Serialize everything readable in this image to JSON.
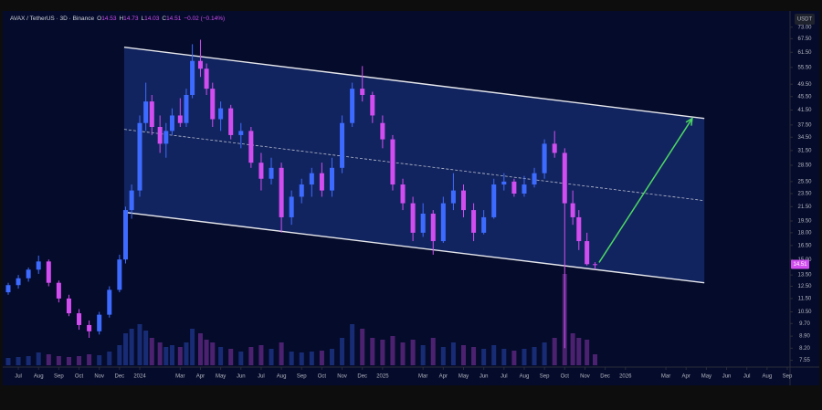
{
  "chart_data": {
    "type": "candlestick",
    "symbol": "AVAX / TetherUS · 3D · Binance",
    "ohlc_labels": [
      "O",
      "H",
      "L",
      "C"
    ],
    "change": "−0.02 (−0.14%)",
    "currency": "USDT",
    "log_scale": true,
    "up_color": "#3d6bff",
    "down_color": "#d24df0",
    "x": [
      -0.5,
      0,
      0.5,
      1,
      1.5,
      2,
      2.5,
      3,
      3.5,
      4,
      4.5,
      5,
      5.3,
      5.6,
      6,
      6.3,
      6.6,
      7,
      7.3,
      7.6,
      8,
      8.3,
      8.6,
      9,
      9.3,
      9.6,
      10,
      10.5,
      11,
      11.5,
      12,
      12.5,
      13,
      13.5,
      14,
      14.5,
      15,
      15.5,
      16,
      16.5,
      17,
      17.5,
      18,
      18.5,
      19,
      19.5,
      20,
      20.5,
      21,
      21.5,
      22,
      22.5,
      23,
      23.5,
      24,
      24.5,
      25,
      25.5,
      26,
      26.5,
      27,
      27.4,
      27.7,
      28.1,
      28.5
    ],
    "open": [
      12,
      12.6,
      13.2,
      14,
      14.8,
      12.8,
      11.5,
      10.4,
      9.6,
      9.2,
      10.3,
      12.2,
      15,
      21,
      24,
      38,
      44,
      37,
      33,
      36,
      40,
      38,
      46,
      58,
      55,
      48,
      39,
      42,
      35,
      36,
      29,
      26,
      28,
      20,
      23,
      25,
      27,
      24,
      28,
      38,
      48,
      46,
      38,
      34,
      25,
      22,
      18,
      20.5,
      17,
      22,
      24,
      21,
      18,
      20,
      25,
      25.5,
      23.5,
      25,
      27,
      33,
      31,
      22,
      20,
      17,
      14.53
    ],
    "high": [
      12.8,
      13.5,
      14.2,
      15.4,
      15,
      13,
      11.8,
      10.7,
      9.9,
      10.5,
      12.5,
      15.5,
      21.5,
      25,
      40,
      50,
      46,
      40,
      38,
      42,
      45,
      48,
      65,
      67,
      57,
      50,
      44,
      43,
      38,
      37,
      31,
      30,
      29,
      24,
      26,
      28,
      29,
      30,
      40,
      50,
      56,
      47,
      40,
      35,
      26,
      23,
      22,
      21,
      23,
      27,
      25,
      22,
      21,
      26,
      27,
      26,
      26.5,
      28,
      34,
      36,
      32,
      24,
      21,
      18,
      14.73
    ],
    "low": [
      11.8,
      12.3,
      12.9,
      13.6,
      12.5,
      11.2,
      10.2,
      9.3,
      8.8,
      9,
      10.1,
      12,
      14.6,
      19.8,
      23,
      36,
      35,
      31,
      30,
      35,
      37,
      37,
      45,
      52,
      46,
      37,
      36,
      34,
      32,
      28,
      24,
      25,
      18,
      19,
      22,
      23,
      23,
      23,
      27,
      37,
      44,
      38,
      32,
      24,
      21,
      17,
      17.5,
      15.5,
      16.8,
      21,
      20,
      17,
      17.8,
      19.8,
      24,
      23,
      23,
      24.5,
      26,
      30,
      8.2,
      19,
      16,
      14.4,
      14.03
    ],
    "close": [
      12.6,
      13.2,
      14,
      14.8,
      12.8,
      11.5,
      10.4,
      9.6,
      9.2,
      10.3,
      12.2,
      15,
      21,
      24,
      38,
      44,
      37,
      33,
      36,
      40,
      38,
      46,
      58,
      55,
      48,
      39,
      42,
      35,
      36,
      29,
      26,
      28,
      20,
      23,
      25,
      27,
      24,
      28,
      38,
      48,
      46,
      40,
      34,
      25,
      22,
      18,
      20.5,
      17,
      22,
      24,
      21,
      18,
      20,
      25,
      25.5,
      23.5,
      25,
      27,
      33,
      31,
      22,
      20,
      17,
      14.53,
      14.51
    ],
    "volume": [
      8,
      9,
      10,
      14,
      12,
      10,
      9,
      10,
      12,
      11,
      15,
      22,
      35,
      40,
      45,
      38,
      30,
      25,
      20,
      22,
      20,
      25,
      40,
      35,
      28,
      25,
      20,
      18,
      15,
      20,
      22,
      18,
      25,
      15,
      14,
      15,
      16,
      18,
      30,
      45,
      40,
      30,
      28,
      32,
      25,
      28,
      22,
      30,
      20,
      25,
      22,
      20,
      18,
      22,
      18,
      16,
      18,
      20,
      25,
      30,
      100,
      35,
      30,
      28,
      12
    ],
    "vlim": [
      0,
      100
    ],
    "xlim": [
      -0.68,
      38
    ],
    "ylim": [
      7.3,
      80
    ],
    "xticks": [
      {
        "value": 0,
        "label": "Jul"
      },
      {
        "value": 1,
        "label": "Aug"
      },
      {
        "value": 2,
        "label": "Sep"
      },
      {
        "value": 3,
        "label": "Oct"
      },
      {
        "value": 4,
        "label": "Nov"
      },
      {
        "value": 5,
        "label": "Dec"
      },
      {
        "value": 6,
        "label": "2024"
      },
      {
        "value": 8,
        "label": "Mar"
      },
      {
        "value": 9,
        "label": "Apr"
      },
      {
        "value": 10,
        "label": "May"
      },
      {
        "value": 11,
        "label": "Jun"
      },
      {
        "value": 12,
        "label": "Jul"
      },
      {
        "value": 13,
        "label": "Aug"
      },
      {
        "value": 14,
        "label": "Sep"
      },
      {
        "value": 15,
        "label": "Oct"
      },
      {
        "value": 16,
        "label": "Nov"
      },
      {
        "value": 17,
        "label": "Dec"
      },
      {
        "value": 18,
        "label": "2025"
      },
      {
        "value": 20,
        "label": "Mar"
      },
      {
        "value": 21,
        "label": "Apr"
      },
      {
        "value": 22,
        "label": "May"
      },
      {
        "value": 23,
        "label": "Jun"
      },
      {
        "value": 24,
        "label": "Jul"
      },
      {
        "value": 25,
        "label": "Aug"
      },
      {
        "value": 26,
        "label": "Sep"
      },
      {
        "value": 27,
        "label": "Oct"
      },
      {
        "value": 28,
        "label": "Nov"
      },
      {
        "value": 29,
        "label": "Dec"
      },
      {
        "value": 30,
        "label": "2026"
      },
      {
        "value": 32,
        "label": "Mar"
      },
      {
        "value": 33,
        "label": "Apr"
      },
      {
        "value": 34,
        "label": "May"
      },
      {
        "value": 35,
        "label": "Jun"
      },
      {
        "value": 36,
        "label": "Jul"
      },
      {
        "value": 37,
        "label": "Aug"
      },
      {
        "value": 38,
        "label": "Sep"
      }
    ],
    "yticks": [
      {
        "value": 73,
        "label": "73.00"
      },
      {
        "value": 67.5,
        "label": "67.50"
      },
      {
        "value": 61.5,
        "label": "61.50"
      },
      {
        "value": 55.5,
        "label": "55.50"
      },
      {
        "value": 49.5,
        "label": "49.50"
      },
      {
        "value": 45.5,
        "label": "45.50"
      },
      {
        "value": 41.5,
        "label": "41.50"
      },
      {
        "value": 37.5,
        "label": "37.50"
      },
      {
        "value": 34.5,
        "label": "34.50"
      },
      {
        "value": 31.5,
        "label": "31.50"
      },
      {
        "value": 28.5,
        "label": "28.50"
      },
      {
        "value": 25.5,
        "label": "25.50"
      },
      {
        "value": 23.5,
        "label": "23.50"
      },
      {
        "value": 21.5,
        "label": "21.50"
      },
      {
        "value": 19.5,
        "label": "19.50"
      },
      {
        "value": 18,
        "label": "18.00"
      },
      {
        "value": 16.5,
        "label": "16.50"
      },
      {
        "value": 15,
        "label": "15.00"
      },
      {
        "value": 13.5,
        "label": "13.50"
      },
      {
        "value": 12.5,
        "label": "12.50"
      },
      {
        "value": 11.5,
        "label": "11.50"
      },
      {
        "value": 10.5,
        "label": "10.50"
      },
      {
        "value": 9.7,
        "label": "9.70"
      },
      {
        "value": 8.9,
        "label": "8.90"
      },
      {
        "value": 8.2,
        "label": "8.20"
      },
      {
        "value": 7.55,
        "label": "7.55"
      }
    ],
    "channel": {
      "x": [
        5.23,
        33.9
      ],
      "upper": [
        63.7,
        39.2
      ],
      "middle": [
        36.4,
        22.4
      ],
      "lower": [
        20.7,
        12.8
      ],
      "color": "#ffffff",
      "fill": "#1e3a8a"
    },
    "arrow": {
      "x": [
        28.7,
        33.3
      ],
      "y": [
        14.7,
        39.2
      ],
      "color": "#4cd964"
    }
  }
}
